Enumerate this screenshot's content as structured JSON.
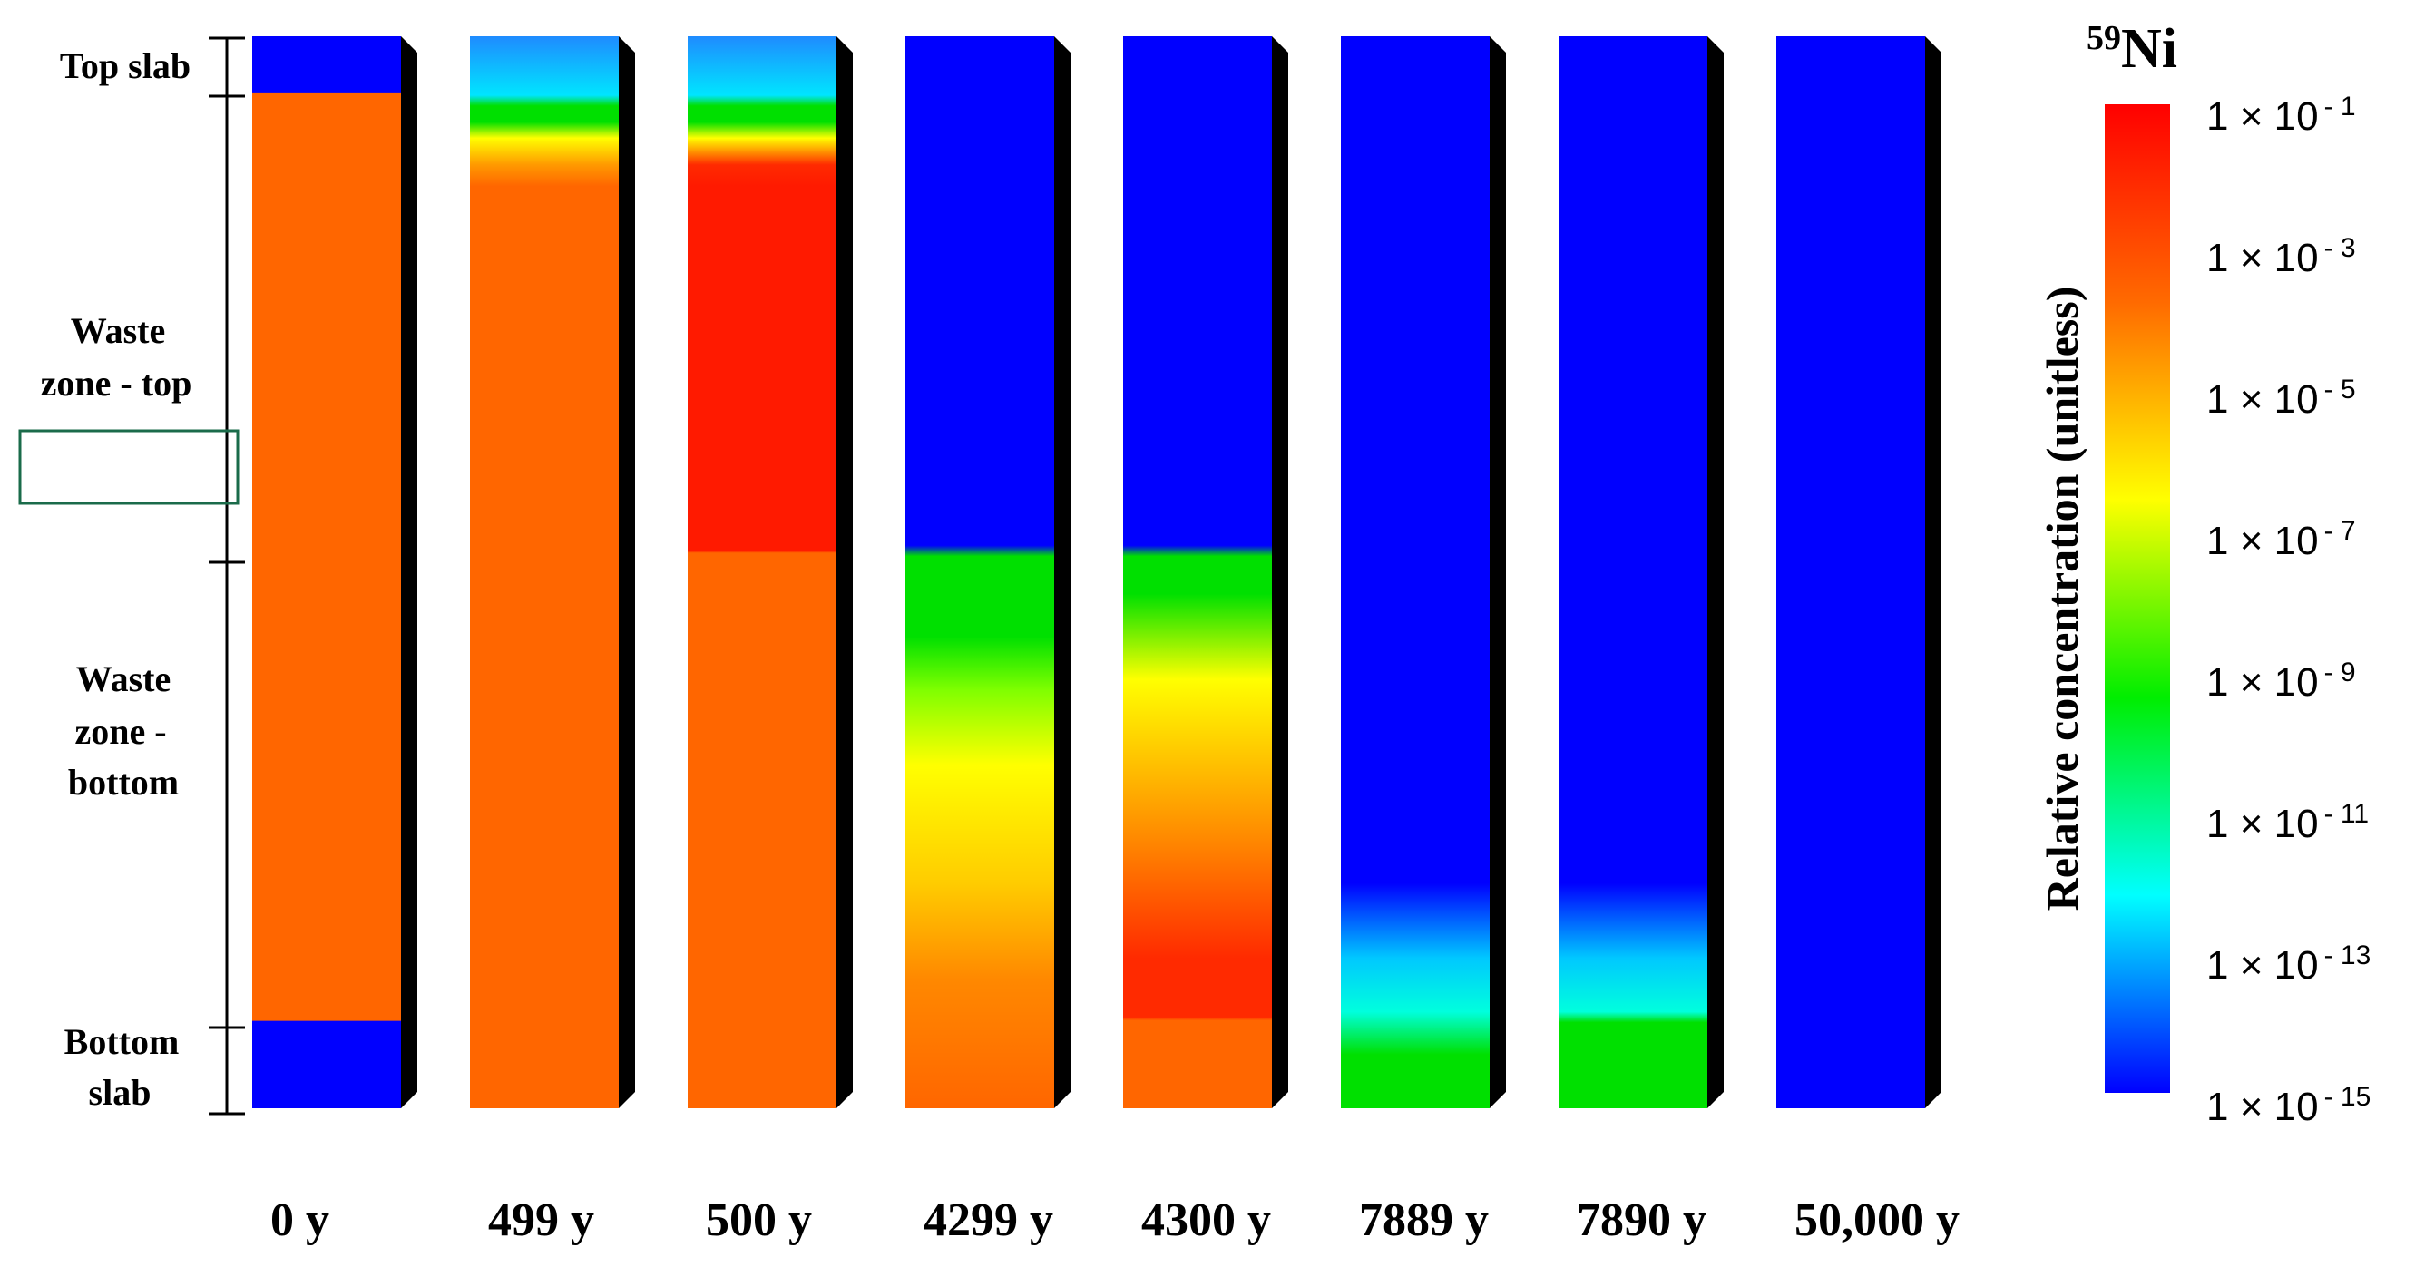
{
  "isotope": {
    "mass": "59",
    "symbol": "Ni"
  },
  "zones": {
    "top_slab": "Top slab",
    "waste_top": [
      "Waste",
      "zone - top"
    ],
    "waste_bottom": [
      "Waste",
      "zone -",
      "bottom"
    ],
    "bottom_slab": [
      "Bottom",
      "slab"
    ]
  },
  "colorbar": {
    "title": "Relative concentration (unitless)",
    "ticks": [
      {
        "base": "1 × 10",
        "exp": "- 1"
      },
      {
        "base": "1 × 10",
        "exp": "- 3"
      },
      {
        "base": "1 × 10",
        "exp": "- 5"
      },
      {
        "base": "1 × 10",
        "exp": "- 7"
      },
      {
        "base": "1 × 10",
        "exp": "- 9"
      },
      {
        "base": "1 × 10",
        "exp": "- 11"
      },
      {
        "base": "1 × 10",
        "exp": "- 13"
      },
      {
        "base": "1 × 10",
        "exp": "- 15"
      }
    ],
    "colors": [
      "#ff0000",
      "#ff6a00",
      "#ffff00",
      "#00ee00",
      "#00ffff",
      "#0000ff"
    ]
  },
  "columns": [
    {
      "label": "0 y",
      "fill": [
        [
          "#0000ff",
          0
        ],
        [
          "#0000ff",
          0.052
        ],
        [
          "#ff6600",
          0.053
        ],
        [
          "#ff6600",
          0.918
        ],
        [
          "#0000ff",
          0.919
        ],
        [
          "#0000ff",
          1
        ]
      ]
    },
    {
      "label": "499 y",
      "fill": [
        [
          "#1f8bff",
          0
        ],
        [
          "#00e5ff",
          0.055
        ],
        [
          "#00e000",
          0.065
        ],
        [
          "#00e000",
          0.08
        ],
        [
          "#ffff00",
          0.095
        ],
        [
          "#ff9900",
          0.12
        ],
        [
          "#ff6600",
          0.14
        ],
        [
          "#ff6600",
          1
        ]
      ]
    },
    {
      "label": "500 y",
      "fill": [
        [
          "#1f8bff",
          0
        ],
        [
          "#00e5ff",
          0.055
        ],
        [
          "#00e000",
          0.065
        ],
        [
          "#00e000",
          0.08
        ],
        [
          "#ffff00",
          0.095
        ],
        [
          "#ff2a00",
          0.12
        ],
        [
          "#ff1a00",
          0.14
        ],
        [
          "#ff1a00",
          0.48
        ],
        [
          "#ff6600",
          0.482
        ],
        [
          "#ff6600",
          1
        ]
      ]
    },
    {
      "label": "4299 y",
      "fill": [
        [
          "#0000ff",
          0
        ],
        [
          "#0000ff",
          0.475
        ],
        [
          "#00e000",
          0.485
        ],
        [
          "#00e000",
          0.56
        ],
        [
          "#80ff00",
          0.61
        ],
        [
          "#ffff00",
          0.68
        ],
        [
          "#ffcc00",
          0.79
        ],
        [
          "#ff8800",
          0.88
        ],
        [
          "#ff6600",
          1
        ]
      ]
    },
    {
      "label": "4300 y",
      "fill": [
        [
          "#0000ff",
          0
        ],
        [
          "#0000ff",
          0.475
        ],
        [
          "#00e000",
          0.485
        ],
        [
          "#00e000",
          0.52
        ],
        [
          "#ffff00",
          0.6
        ],
        [
          "#ff8800",
          0.75
        ],
        [
          "#ff2a00",
          0.86
        ],
        [
          "#ff2a00",
          0.915
        ],
        [
          "#ff6600",
          0.918
        ],
        [
          "#ff6600",
          1
        ]
      ]
    },
    {
      "label": "7889 y",
      "fill": [
        [
          "#0000ff",
          0
        ],
        [
          "#0000ff",
          0.79
        ],
        [
          "#00c8ff",
          0.86
        ],
        [
          "#00ffdd",
          0.91
        ],
        [
          "#00e000",
          0.95
        ],
        [
          "#00e000",
          1
        ]
      ]
    },
    {
      "label": "7890 y",
      "fill": [
        [
          "#0000ff",
          0
        ],
        [
          "#0000ff",
          0.79
        ],
        [
          "#00c8ff",
          0.86
        ],
        [
          "#00ffdd",
          0.91
        ],
        [
          "#00e000",
          0.92
        ],
        [
          "#00e000",
          1
        ]
      ]
    },
    {
      "label": "50,000 y",
      "fill": [
        [
          "#0000ff",
          0
        ],
        [
          "#0000ff",
          1
        ]
      ]
    }
  ]
}
